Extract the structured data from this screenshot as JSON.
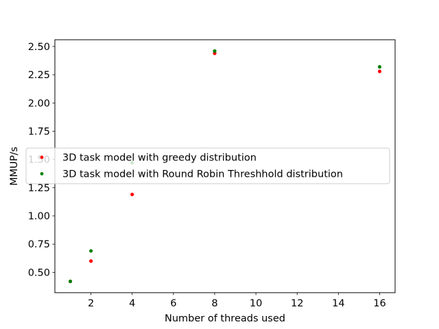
{
  "chart_data": {
    "type": "scatter",
    "title": "",
    "xlabel": "Number of threads used",
    "ylabel": "MMUP/s",
    "xlim": [
      0.25,
      16.75
    ],
    "ylim": [
      0.32,
      2.56
    ],
    "xticks": [
      2,
      4,
      6,
      8,
      10,
      12,
      14,
      16
    ],
    "yticks": [
      0.5,
      0.75,
      1.0,
      1.25,
      1.5,
      1.75,
      2.0,
      2.25,
      2.5
    ],
    "ytick_format": 2,
    "grid": false,
    "legend_position": "center-left",
    "series": [
      {
        "name": "3D task model with greedy distribution",
        "color": "#ff0000",
        "x": [
          1,
          2,
          4,
          8,
          16
        ],
        "y": [
          0.42,
          0.6,
          1.19,
          2.44,
          2.28
        ]
      },
      {
        "name": "3D task model with Round Robin Threshhold distribution",
        "color": "#008000",
        "x": [
          1,
          2,
          4,
          8,
          16
        ],
        "y": [
          0.42,
          0.69,
          1.47,
          2.46,
          2.32
        ]
      }
    ]
  }
}
